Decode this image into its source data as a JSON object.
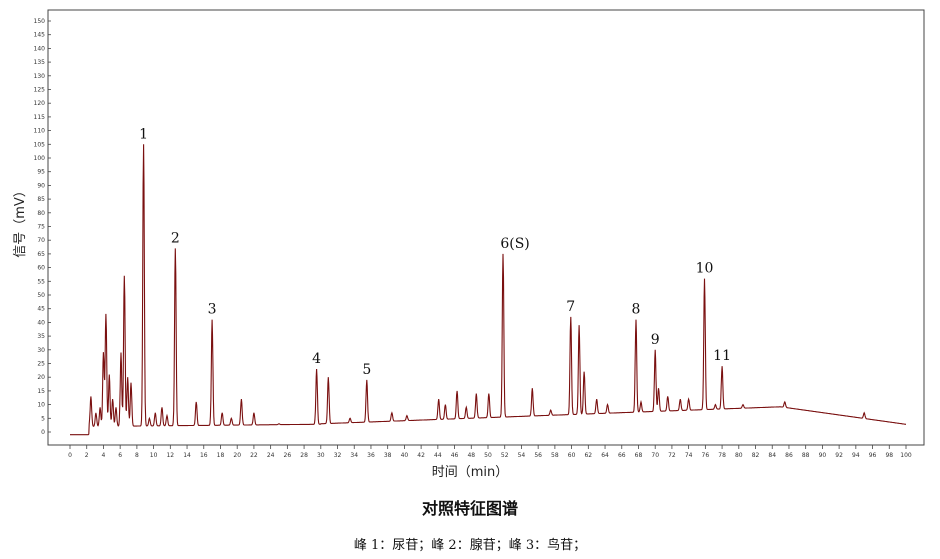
{
  "chart_data": {
    "type": "line",
    "xlabel": "时间（min）",
    "ylabel": "信号（mV）",
    "xlim": [
      0,
      100
    ],
    "ylim": [
      -5,
      155
    ],
    "x_ticks": [
      0,
      2,
      4,
      6,
      8,
      10,
      12,
      14,
      16,
      18,
      20,
      22,
      24,
      26,
      28,
      30,
      32,
      34,
      36,
      38,
      40,
      42,
      44,
      46,
      48,
      50,
      52,
      54,
      56,
      58,
      60,
      62,
      64,
      66,
      68,
      70,
      72,
      74,
      76,
      78,
      80,
      82,
      84,
      86,
      88,
      90,
      92,
      94,
      96,
      98,
      100
    ],
    "y_ticks": [
      0,
      5,
      10,
      15,
      20,
      25,
      30,
      35,
      40,
      45,
      50,
      55,
      60,
      65,
      70,
      75,
      80,
      85,
      90,
      95,
      100,
      105,
      110,
      115,
      120,
      125,
      130,
      135,
      140,
      145,
      150
    ],
    "grid": false,
    "line_color": "#7a1010",
    "peaks": [
      {
        "label": "1",
        "x": 8.8,
        "y": 105
      },
      {
        "label": "2",
        "x": 12.6,
        "y": 67
      },
      {
        "label": "3",
        "x": 17.0,
        "y": 41
      },
      {
        "label": "4",
        "x": 29.5,
        "y": 23
      },
      {
        "label": "5",
        "x": 35.5,
        "y": 19
      },
      {
        "label": "6(S)",
        "x": 51.8,
        "y": 65
      },
      {
        "label": "7",
        "x": 59.9,
        "y": 42
      },
      {
        "label": "8",
        "x": 67.7,
        "y": 41
      },
      {
        "label": "9",
        "x": 70.0,
        "y": 30
      },
      {
        "label": "10",
        "x": 75.9,
        "y": 56
      },
      {
        "label": "11",
        "x": 78.0,
        "y": 24
      }
    ],
    "minor_peaks": [
      [
        2.5,
        13
      ],
      [
        3.1,
        7
      ],
      [
        3.6,
        9
      ],
      [
        4.0,
        29
      ],
      [
        4.3,
        43
      ],
      [
        4.7,
        21
      ],
      [
        5.1,
        12
      ],
      [
        5.5,
        9
      ],
      [
        6.1,
        29
      ],
      [
        6.5,
        57
      ],
      [
        6.9,
        20
      ],
      [
        7.3,
        18
      ],
      [
        9.5,
        5
      ],
      [
        10.2,
        7
      ],
      [
        11.0,
        9
      ],
      [
        11.6,
        6
      ],
      [
        15.1,
        11
      ],
      [
        18.2,
        7
      ],
      [
        19.3,
        5
      ],
      [
        20.5,
        12
      ],
      [
        22.0,
        7
      ],
      [
        25.0,
        3
      ],
      [
        30.9,
        20
      ],
      [
        33.5,
        5
      ],
      [
        38.5,
        7
      ],
      [
        40.3,
        6
      ],
      [
        44.1,
        12
      ],
      [
        44.9,
        10
      ],
      [
        46.3,
        15
      ],
      [
        47.4,
        9
      ],
      [
        48.6,
        14
      ],
      [
        50.1,
        14
      ],
      [
        55.3,
        16
      ],
      [
        57.5,
        8
      ],
      [
        60.9,
        39
      ],
      [
        61.5,
        22
      ],
      [
        63.0,
        12
      ],
      [
        64.3,
        10
      ],
      [
        68.3,
        11
      ],
      [
        70.4,
        16
      ],
      [
        71.5,
        13
      ],
      [
        73.0,
        12
      ],
      [
        74.0,
        12
      ],
      [
        77.2,
        10
      ],
      [
        80.5,
        10
      ],
      [
        85.5,
        11
      ],
      [
        95.0,
        7
      ]
    ]
  },
  "caption": "对照特征图谱",
  "note": "峰 1：尿苷；峰 2：腺苷；峰 3：鸟苷；"
}
